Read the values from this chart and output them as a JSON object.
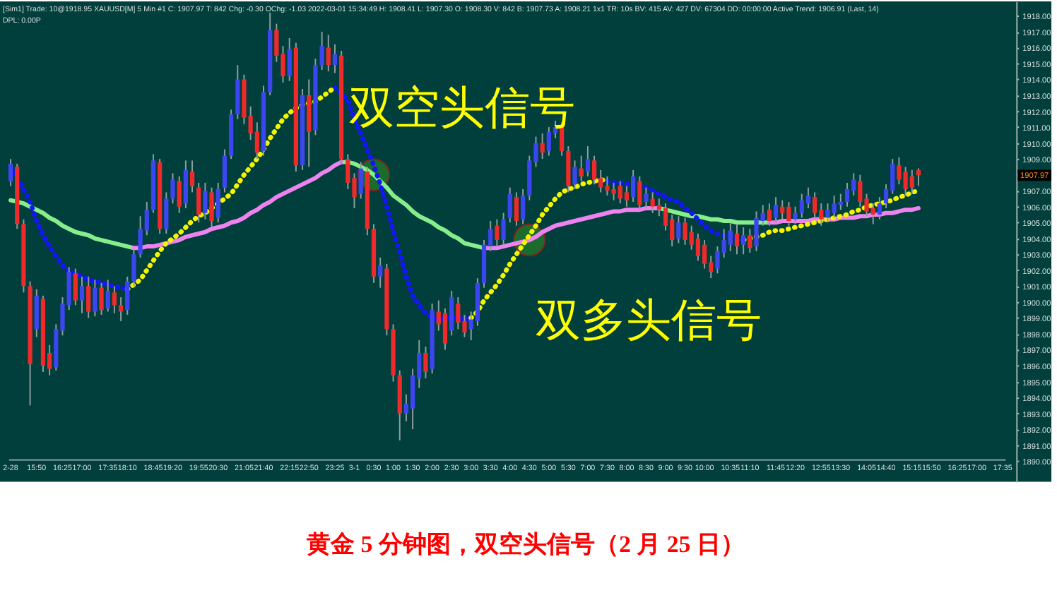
{
  "chart_data": {
    "type": "candlestick",
    "title": "黄金 5 分钟图，双空头信号（2 月 25 日）",
    "subtitle": "[Sim1]  Trade: 10@1918.95  XAUUSD[M]  5 Min  #1  C: 1907.97  T: 842  Chg: -0.30  OChg: -1.03  2022-03-01 15:34:49  H: 1908.41  L: 1907.30  O: 1908.30  V: 842  B: 1907.73  A: 1908.21  1x1  TR: 10s  BV: 415  AV: 427  DV: 67304  DD: 00:00:00  Active Trend: 1906.91  (Last, 14)",
    "categories": [
      "2-28",
      null,
      null,
      null,
      "15:50",
      null,
      null,
      null,
      "16:25",
      null,
      null,
      "17:00",
      null,
      null,
      null,
      "17:35",
      null,
      null,
      "18:10",
      null,
      null,
      null,
      "18:45",
      null,
      null,
      "19:20",
      null,
      null,
      null,
      "19:55",
      null,
      null,
      "20:30",
      null,
      null,
      null,
      "21:05",
      null,
      null,
      "21:40",
      null,
      null,
      null,
      "22:15",
      null,
      null,
      "22:50",
      null,
      null,
      null,
      "23:25",
      null,
      null,
      "3-1",
      null,
      null,
      "0:30",
      null,
      null,
      "1:00",
      null,
      null,
      "1:30",
      null,
      null,
      "2:00",
      null,
      null,
      "2:30",
      null,
      null,
      "3:00",
      null,
      null,
      "3:30",
      null,
      null,
      "4:00",
      null,
      null,
      "4:30",
      null,
      null,
      "5:00",
      null,
      null,
      "5:30",
      null,
      null,
      "7:00",
      null,
      null,
      "7:30",
      null,
      null,
      "8:00",
      null,
      null,
      "8:30",
      null,
      null,
      "9:00",
      null,
      null,
      "9:30",
      null,
      null,
      "10:00",
      null,
      null,
      null,
      "10:35",
      null,
      null,
      "11:10",
      null,
      null,
      null,
      "11:45",
      null,
      null,
      "12:20",
      null,
      null,
      null,
      "12:55",
      null,
      null,
      "13:30",
      null,
      null,
      null,
      "14:05",
      null,
      null,
      "14:40",
      null,
      null,
      null,
      "15:15",
      null,
      null,
      "15:50",
      null,
      null,
      null,
      "16:25",
      null,
      null,
      "17:00",
      null,
      null,
      null,
      "17:35"
    ],
    "ohlc": [
      [
        1907.6,
        1909.0,
        1907.3,
        1908.7
      ],
      [
        1908.5,
        1908.7,
        1904.6,
        1904.9
      ],
      [
        1904.9,
        1905.2,
        1900.6,
        1901.0
      ],
      [
        1901.0,
        1901.3,
        1893.5,
        1896.1
      ],
      [
        1898.3,
        1900.8,
        1897.8,
        1900.4
      ],
      [
        1900.2,
        1900.4,
        1895.6,
        1896.0
      ],
      [
        1896.8,
        1897.3,
        1895.4,
        1895.8
      ],
      [
        1895.9,
        1898.6,
        1895.7,
        1898.3
      ],
      [
        1898.2,
        1900.3,
        1897.9,
        1899.9
      ],
      [
        1899.8,
        1902.2,
        1899.5,
        1901.9
      ],
      [
        1901.8,
        1902.1,
        1899.8,
        1900.1
      ],
      [
        1900.1,
        1901.6,
        1899.3,
        1901.0
      ],
      [
        1901.0,
        1901.6,
        1899.0,
        1899.4
      ],
      [
        1899.4,
        1901.4,
        1899.1,
        1900.9
      ],
      [
        1900.9,
        1901.2,
        1899.2,
        1899.5
      ],
      [
        1899.6,
        1901.4,
        1899.4,
        1900.7
      ],
      [
        1900.6,
        1901.0,
        1899.3,
        1899.8
      ],
      [
        1899.8,
        1900.3,
        1898.8,
        1899.4
      ],
      [
        1899.5,
        1901.6,
        1899.2,
        1901.3
      ],
      [
        1901.3,
        1903.3,
        1901.0,
        1903.0
      ],
      [
        1903.0,
        1905.4,
        1902.8,
        1904.6
      ],
      [
        1904.5,
        1906.3,
        1904.2,
        1905.8
      ],
      [
        1905.8,
        1909.3,
        1905.6,
        1908.9
      ],
      [
        1908.8,
        1909.0,
        1904.3,
        1904.6
      ],
      [
        1904.6,
        1906.9,
        1904.3,
        1906.5
      ],
      [
        1906.5,
        1908.1,
        1906.2,
        1907.7
      ],
      [
        1907.6,
        1907.9,
        1905.6,
        1906.0
      ],
      [
        1906.2,
        1908.9,
        1905.9,
        1908.3
      ],
      [
        1908.2,
        1908.9,
        1906.9,
        1907.3
      ],
      [
        1907.2,
        1907.5,
        1905.0,
        1905.5
      ],
      [
        1905.6,
        1907.5,
        1905.2,
        1907.0
      ],
      [
        1906.9,
        1907.2,
        1904.7,
        1905.1
      ],
      [
        1905.3,
        1907.5,
        1905.0,
        1907.1
      ],
      [
        1907.2,
        1909.6,
        1906.9,
        1909.2
      ],
      [
        1909.2,
        1912.1,
        1909.0,
        1911.8
      ],
      [
        1911.8,
        1914.9,
        1911.5,
        1914.0
      ],
      [
        1914.0,
        1914.3,
        1911.2,
        1911.6
      ],
      [
        1911.7,
        1912.3,
        1910.2,
        1910.6
      ],
      [
        1910.7,
        1911.3,
        1909.0,
        1909.4
      ],
      [
        1909.5,
        1913.6,
        1909.2,
        1913.2
      ],
      [
        1913.2,
        1918.2,
        1913.0,
        1917.1
      ],
      [
        1917.1,
        1917.5,
        1915.1,
        1915.5
      ],
      [
        1915.6,
        1916.1,
        1913.8,
        1914.2
      ],
      [
        1914.2,
        1916.6,
        1913.9,
        1915.9
      ],
      [
        1916.0,
        1916.3,
        1908.2,
        1908.6
      ],
      [
        1908.6,
        1913.4,
        1908.3,
        1913.0
      ],
      [
        1913.0,
        1914.0,
        1908.5,
        1910.7
      ],
      [
        1910.8,
        1915.3,
        1910.5,
        1914.9
      ],
      [
        1914.9,
        1917.0,
        1914.6,
        1916.1
      ],
      [
        1916.0,
        1916.8,
        1914.5,
        1914.9
      ],
      [
        1914.9,
        1916.2,
        1914.4,
        1915.6
      ],
      [
        1915.5,
        1915.8,
        1908.7,
        1909.0
      ],
      [
        1909.0,
        1909.3,
        1907.1,
        1907.5
      ],
      [
        1907.8,
        1908.1,
        1905.9,
        1906.6
      ],
      [
        1906.8,
        1908.8,
        1906.5,
        1908.4
      ],
      [
        1908.2,
        1908.5,
        1904.2,
        1904.6
      ],
      [
        1904.6,
        1904.9,
        1901.2,
        1901.6
      ],
      [
        1901.6,
        1902.8,
        1900.9,
        1902.3
      ],
      [
        1902.1,
        1902.4,
        1897.9,
        1898.3
      ],
      [
        1898.3,
        1898.6,
        1895.0,
        1895.4
      ],
      [
        1895.4,
        1895.7,
        1891.3,
        1893.0
      ],
      [
        1893.0,
        1894.2,
        1892.5,
        1893.6
      ],
      [
        1893.3,
        1895.8,
        1892.0,
        1895.4
      ],
      [
        1895.2,
        1897.6,
        1894.6,
        1896.8
      ],
      [
        1896.8,
        1897.2,
        1895.2,
        1895.6
      ],
      [
        1895.8,
        1899.9,
        1895.5,
        1899.5
      ],
      [
        1899.4,
        1900.1,
        1898.2,
        1898.6
      ],
      [
        1899.3,
        1899.6,
        1897.0,
        1897.4
      ],
      [
        1898.2,
        1900.7,
        1897.9,
        1900.3
      ],
      [
        1899.9,
        1900.3,
        1898.3,
        1898.7
      ],
      [
        1898.8,
        1899.2,
        1897.8,
        1898.1
      ],
      [
        1898.3,
        1899.4,
        1897.6,
        1898.9
      ],
      [
        1898.8,
        1901.5,
        1898.5,
        1901.2
      ],
      [
        1901.2,
        1903.9,
        1900.9,
        1903.6
      ],
      [
        1903.5,
        1905.1,
        1903.2,
        1904.6
      ],
      [
        1904.8,
        1905.2,
        1903.5,
        1903.9
      ],
      [
        1903.9,
        1905.6,
        1903.6,
        1905.2
      ],
      [
        1905.3,
        1907.2,
        1905.0,
        1906.8
      ],
      [
        1906.6,
        1906.9,
        1904.8,
        1905.1
      ],
      [
        1905.2,
        1907.1,
        1904.9,
        1906.7
      ],
      [
        1906.7,
        1909.2,
        1906.4,
        1908.9
      ],
      [
        1908.8,
        1910.4,
        1908.5,
        1910.0
      ],
      [
        1910.0,
        1910.6,
        1909.0,
        1909.4
      ],
      [
        1909.5,
        1911.0,
        1909.2,
        1910.7
      ],
      [
        1910.6,
        1911.4,
        1910.3,
        1911.0
      ],
      [
        1911.0,
        1911.3,
        1909.2,
        1909.5
      ],
      [
        1909.5,
        1909.8,
        1906.9,
        1907.3
      ],
      [
        1907.4,
        1908.9,
        1907.1,
        1908.5
      ],
      [
        1908.4,
        1909.2,
        1907.6,
        1907.9
      ],
      [
        1908.2,
        1909.8,
        1907.9,
        1909.0
      ],
      [
        1908.9,
        1909.2,
        1907.4,
        1907.7
      ],
      [
        1907.8,
        1908.3,
        1906.9,
        1907.2
      ],
      [
        1907.3,
        1907.9,
        1906.7,
        1907.0
      ],
      [
        1907.1,
        1907.5,
        1906.4,
        1906.8
      ],
      [
        1907.3,
        1907.6,
        1906.2,
        1906.5
      ],
      [
        1906.9,
        1907.3,
        1906.0,
        1906.4
      ],
      [
        1906.6,
        1908.3,
        1906.3,
        1907.9
      ],
      [
        1907.6,
        1907.9,
        1905.8,
        1906.1
      ],
      [
        1906.3,
        1907.2,
        1905.9,
        1906.8
      ],
      [
        1906.5,
        1906.9,
        1905.6,
        1906.0
      ],
      [
        1906.1,
        1906.5,
        1905.4,
        1905.8
      ],
      [
        1905.9,
        1906.2,
        1904.5,
        1904.8
      ],
      [
        1905.2,
        1905.5,
        1903.5,
        1903.9
      ],
      [
        1904.0,
        1905.4,
        1903.7,
        1905.0
      ],
      [
        1905.0,
        1905.3,
        1903.6,
        1903.9
      ],
      [
        1904.4,
        1904.8,
        1903.3,
        1903.6
      ],
      [
        1904.0,
        1904.3,
        1902.6,
        1902.9
      ],
      [
        1903.6,
        1903.9,
        1902.1,
        1902.4
      ],
      [
        1902.5,
        1902.9,
        1901.5,
        1901.9
      ],
      [
        1902.1,
        1903.5,
        1901.8,
        1903.2
      ],
      [
        1903.1,
        1904.6,
        1902.8,
        1903.9
      ],
      [
        1903.6,
        1905.0,
        1903.2,
        1904.5
      ],
      [
        1904.3,
        1904.9,
        1903.0,
        1903.5
      ],
      [
        1903.6,
        1904.7,
        1903.0,
        1904.2
      ],
      [
        1904.2,
        1904.6,
        1903.1,
        1903.4
      ],
      [
        1903.5,
        1905.7,
        1903.2,
        1905.3
      ],
      [
        1905.1,
        1906.1,
        1904.8,
        1905.6
      ],
      [
        1905.8,
        1906.2,
        1904.8,
        1905.1
      ],
      [
        1905.3,
        1906.6,
        1905.0,
        1906.1
      ],
      [
        1906.0,
        1906.4,
        1905.2,
        1905.6
      ],
      [
        1906.0,
        1906.3,
        1904.8,
        1905.1
      ],
      [
        1905.2,
        1906.0,
        1904.9,
        1905.6
      ],
      [
        1905.6,
        1906.8,
        1905.3,
        1906.4
      ],
      [
        1906.2,
        1907.2,
        1905.9,
        1906.7
      ],
      [
        1906.6,
        1906.9,
        1905.3,
        1905.6
      ],
      [
        1905.8,
        1906.2,
        1904.8,
        1905.2
      ],
      [
        1905.3,
        1906.2,
        1905.0,
        1905.8
      ],
      [
        1905.6,
        1906.7,
        1905.3,
        1906.2
      ],
      [
        1906.1,
        1906.8,
        1905.8,
        1906.3
      ],
      [
        1906.3,
        1907.5,
        1906.0,
        1907.1
      ],
      [
        1907.0,
        1908.1,
        1906.7,
        1907.7
      ],
      [
        1907.6,
        1908.0,
        1906.0,
        1906.3
      ],
      [
        1906.5,
        1906.8,
        1905.4,
        1905.7
      ],
      [
        1905.9,
        1906.2,
        1904.9,
        1905.5
      ],
      [
        1905.5,
        1906.6,
        1905.2,
        1906.2
      ],
      [
        1906.2,
        1907.4,
        1905.9,
        1907.1
      ],
      [
        1907.0,
        1909.0,
        1906.8,
        1908.7
      ],
      [
        1908.6,
        1909.1,
        1907.4,
        1907.7
      ],
      [
        1908.2,
        1908.5,
        1906.7,
        1907.1
      ],
      [
        1907.9,
        1908.3,
        1906.8,
        1907.2
      ],
      [
        1908.3,
        1908.41,
        1907.3,
        1907.97
      ],
      null,
      null,
      null,
      null,
      null,
      null,
      null,
      null,
      null,
      null,
      null,
      null,
      null
    ],
    "colors": [
      "#3c46f0",
      "#ee2a2a",
      "#ee2a2a",
      "#ee2a2a",
      "#3c46f0",
      "#ee2a2a",
      "#ee2a2a",
      "#3c46f0",
      "#3c46f0",
      "#3c46f0",
      "#ee2a2a",
      "#3c46f0",
      "#ee2a2a",
      "#3c46f0",
      "#ee2a2a",
      "#3c46f0",
      "#ee2a2a",
      "#ee2a2a",
      "#3c46f0",
      "#3c46f0",
      "#3c46f0",
      "#3c46f0",
      "#3c46f0",
      "#ee2a2a",
      "#3c46f0",
      "#3c46f0",
      "#ee2a2a",
      "#3c46f0",
      "#ee2a2a",
      "#ee2a2a",
      "#3c46f0",
      "#ee2a2a",
      "#3c46f0",
      "#3c46f0",
      "#3c46f0",
      "#3c46f0",
      "#ee2a2a",
      "#ee2a2a",
      "#ee2a2a",
      "#3c46f0",
      "#3c46f0",
      "#ee2a2a",
      "#ee2a2a",
      "#3c46f0",
      "#ee2a2a",
      "#3c46f0",
      "#ee2a2a",
      "#3c46f0",
      "#3c46f0",
      "#ee2a2a",
      "#3c46f0",
      "#ee2a2a",
      "#ee2a2a",
      "#ee2a2a",
      "#3c46f0",
      "#ee2a2a",
      "#ee2a2a",
      "#3c46f0",
      "#ee2a2a",
      "#ee2a2a",
      "#ee2a2a",
      "#3c46f0",
      "#3c46f0",
      "#3c46f0",
      "#ee2a2a",
      "#3c46f0",
      "#ee2a2a",
      "#ee2a2a",
      "#3c46f0",
      "#ee2a2a",
      "#ee2a2a",
      "#3c46f0",
      "#3c46f0",
      "#3c46f0",
      "#3c46f0",
      "#ee2a2a",
      "#3c46f0",
      "#3c46f0",
      "#ee2a2a",
      "#3c46f0",
      "#3c46f0",
      "#3c46f0",
      "#ee2a2a",
      "#3c46f0",
      "#3c46f0",
      "#ee2a2a",
      "#ee2a2a",
      "#3c46f0",
      "#ee2a2a",
      "#3c46f0",
      "#ee2a2a",
      "#ee2a2a",
      "#ee2a2a",
      "#ee2a2a",
      "#ee2a2a",
      "#ee2a2a",
      "#3c46f0",
      "#ee2a2a",
      "#3c46f0",
      "#ee2a2a",
      "#ee2a2a",
      "#ee2a2a",
      "#ee2a2a",
      "#3c46f0",
      "#ee2a2a",
      "#ee2a2a",
      "#ee2a2a",
      "#ee2a2a",
      "#ee2a2a",
      "#3c46f0",
      "#3c46f0",
      "#3c46f0",
      "#ee2a2a",
      "#3c46f0",
      "#ee2a2a",
      "#3c46f0",
      "#3c46f0",
      "#ee2a2a",
      "#3c46f0",
      "#ee2a2a",
      "#ee2a2a",
      "#3c46f0",
      "#3c46f0",
      "#3c46f0",
      "#ee2a2a",
      "#ee2a2a",
      "#3c46f0",
      "#3c46f0",
      "#3c46f0",
      "#3c46f0",
      "#3c46f0",
      "#ee2a2a",
      "#ee2a2a",
      "#ee2a2a",
      "#3c46f0",
      "#3c46f0",
      "#3c46f0",
      "#ee2a2a",
      "#ee2a2a",
      "#ee2a2a",
      "#ee2a2a",
      null,
      null,
      null,
      null,
      null,
      null,
      null,
      null,
      null,
      null,
      null,
      null,
      null
    ],
    "series": [
      {
        "type": "line",
        "color": "#86ee8a",
        "values": [
          1906.4,
          1906.3,
          1906.2,
          1906.0,
          1905.8,
          1905.6,
          1905.3,
          1905.1,
          1904.8,
          1904.6,
          1904.4,
          1904.3,
          1904.2,
          1904.0,
          1903.9,
          1903.8,
          1903.7,
          1903.6,
          1903.5,
          1903.4,
          null,
          null,
          null,
          null,
          null,
          null,
          null,
          null,
          null,
          null,
          null,
          null,
          null,
          null,
          null,
          null,
          null,
          null,
          null,
          null,
          null,
          null,
          null,
          null,
          null,
          null,
          null,
          null,
          null,
          null,
          null,
          1908.8,
          1908.8,
          1908.7,
          1908.5,
          1908.3,
          1908.0,
          1907.6,
          1907.2,
          1906.7,
          1906.4,
          1906.1,
          1905.7,
          1905.4,
          1905.2,
          1905.0,
          1904.7,
          1904.5,
          1904.2,
          1904.0,
          1903.7,
          1903.6,
          1903.5,
          1903.4,
          null,
          null,
          null,
          null,
          null,
          null,
          null,
          null,
          null,
          null,
          null,
          null,
          null,
          null,
          null,
          null,
          null,
          null,
          null,
          null,
          null,
          null,
          null,
          null,
          null,
          null,
          1905.9,
          1905.8,
          1905.7,
          1905.6,
          1905.5,
          1905.4,
          1905.4,
          1905.3,
          1905.2,
          1905.2,
          1905.1,
          1905.1,
          1905.0,
          1905.0,
          1905.0,
          1905.0,
          1905.0,
          1905.0,
          null,
          null,
          null,
          null,
          null,
          null,
          null,
          null,
          null,
          null,
          null,
          null,
          null,
          null,
          null,
          null,
          null,
          null,
          null,
          null,
          null,
          null,
          null,
          null,
          null,
          null,
          null,
          null,
          null,
          null,
          null,
          null,
          null,
          null,
          null,
          null
        ]
      },
      {
        "type": "line",
        "color": "#ee82ee",
        "values": [
          null,
          null,
          null,
          null,
          null,
          null,
          null,
          null,
          null,
          null,
          null,
          null,
          null,
          null,
          null,
          null,
          null,
          null,
          null,
          1903.4,
          1903.4,
          1903.5,
          1903.5,
          1903.6,
          1903.7,
          1903.8,
          1903.9,
          1904.1,
          1904.2,
          1904.3,
          1904.4,
          1904.6,
          1904.7,
          1904.8,
          1905.0,
          1905.1,
          1905.3,
          1905.6,
          1905.8,
          1906.1,
          1906.3,
          1906.6,
          1906.8,
          1907.0,
          1907.2,
          1907.4,
          1907.6,
          1907.8,
          1908.1,
          1908.3,
          1908.6,
          1908.8,
          null,
          null,
          null,
          null,
          null,
          null,
          null,
          null,
          null,
          null,
          null,
          null,
          null,
          null,
          null,
          null,
          null,
          null,
          null,
          null,
          null,
          1903.4,
          1903.4,
          1903.4,
          1903.5,
          1903.6,
          1903.7,
          1903.8,
          1903.9,
          1904.1,
          1904.4,
          1904.6,
          1904.8,
          1904.9,
          1905.0,
          1905.1,
          1905.2,
          1905.3,
          1905.4,
          1905.5,
          1905.6,
          1905.7,
          1905.7,
          1905.8,
          1905.8,
          1905.8,
          1905.9,
          1905.9,
          1905.9,
          null,
          null,
          null,
          null,
          null,
          null,
          null,
          null,
          null,
          null,
          null,
          null,
          null,
          null,
          null,
          null,
          1905.0,
          1905.0,
          1905.1,
          1905.1,
          1905.1,
          1905.1,
          1905.1,
          1905.2,
          1905.2,
          1905.2,
          1905.2,
          1905.3,
          1905.3,
          1905.3,
          1905.4,
          1905.4,
          1905.5,
          1905.5,
          1905.6,
          1905.6,
          1905.7,
          1905.8,
          1905.8,
          1905.9,
          null,
          null,
          null,
          null,
          null,
          null,
          null,
          null,
          null,
          null,
          null,
          null,
          null
        ]
      },
      {
        "type": "line",
        "color": "#1414ff",
        "line_style": "dotted",
        "values": [
          1908.5,
          1907.8,
          1907.1,
          1906.3,
          1905.1,
          1904.2,
          1903.5,
          1902.9,
          1902.3,
          1901.9,
          1901.8,
          1901.6,
          1901.4,
          1901.3,
          1901.2,
          1901.1,
          1901.0,
          1900.9,
          1900.8,
          null,
          null,
          null,
          null,
          null,
          null,
          null,
          null,
          null,
          null,
          null,
          null,
          null,
          null,
          null,
          null,
          null,
          null,
          null,
          null,
          null,
          null,
          null,
          null,
          null,
          null,
          null,
          null,
          null,
          null,
          null,
          1913.5,
          1913.1,
          1912.7,
          1911.5,
          1910.6,
          1909.6,
          1908.6,
          1907.4,
          1906.0,
          1904.5,
          1903.1,
          1901.6,
          1900.4,
          1899.8,
          1899.3,
          1899.0,
          1898.9,
          1899.0,
          1899.0,
          1899.0,
          1898.9,
          1899.0,
          null,
          null,
          null,
          null,
          null,
          null,
          null,
          null,
          null,
          null,
          null,
          null,
          null,
          null,
          null,
          null,
          null,
          null,
          null,
          null,
          1907.6,
          1907.5,
          1907.5,
          1907.4,
          1907.4,
          1907.3,
          1907.2,
          1907.0,
          1906.8,
          1906.6,
          1906.4,
          1906.3,
          1905.9,
          1905.6,
          1905.2,
          1904.8,
          1904.5,
          1904.3,
          1904.2,
          1904.0,
          1904.0,
          1903.9,
          null,
          null,
          null,
          null,
          null,
          null,
          null,
          null,
          null,
          null,
          null,
          null,
          null,
          null,
          null,
          null,
          null,
          null,
          null,
          null,
          null,
          null,
          null,
          null,
          null,
          null,
          null,
          null,
          null,
          null,
          null,
          null,
          null,
          null,
          null,
          null,
          null,
          null,
          null,
          null
        ]
      },
      {
        "type": "line",
        "color": "#f5f500",
        "line_style": "dotted",
        "values": [
          null,
          null,
          null,
          null,
          null,
          null,
          null,
          null,
          null,
          null,
          null,
          null,
          null,
          null,
          null,
          null,
          null,
          null,
          1900.8,
          1901.1,
          1901.4,
          1902.0,
          1902.6,
          1903.2,
          1903.7,
          1904.0,
          1904.3,
          1904.7,
          1905.1,
          1905.4,
          1905.6,
          1905.9,
          1906.2,
          1906.5,
          1906.8,
          1907.4,
          1908.0,
          1908.5,
          1909.0,
          1909.6,
          1910.3,
          1910.9,
          1911.5,
          1911.9,
          1912.2,
          1912.4,
          1912.5,
          1912.6,
          1912.9,
          1913.2,
          1913.5,
          null,
          null,
          null,
          null,
          null,
          null,
          null,
          null,
          null,
          null,
          null,
          null,
          null,
          null,
          null,
          null,
          null,
          null,
          null,
          null,
          1899.0,
          1899.4,
          1900.1,
          1900.6,
          1901.1,
          1901.7,
          1902.4,
          1903.0,
          1903.6,
          1904.2,
          1904.8,
          1905.5,
          1906.0,
          1906.5,
          1906.9,
          1907.1,
          1907.2,
          1907.4,
          1907.5,
          1907.6,
          1907.7,
          1907.6,
          null,
          null,
          null,
          null,
          null,
          null,
          null,
          null,
          null,
          null,
          null,
          null,
          null,
          null,
          null,
          null,
          null,
          null,
          null,
          null,
          1903.9,
          1904.0,
          1904.1,
          1904.2,
          1904.4,
          1904.5,
          1904.5,
          1904.6,
          1904.7,
          1904.8,
          1904.9,
          1905.0,
          1905.1,
          1905.2,
          1905.3,
          1905.4,
          1905.5,
          1905.7,
          1905.8,
          1906.0,
          1906.1,
          1906.2,
          1906.3,
          1906.4,
          1906.6,
          1906.7,
          1906.9,
          1907.0,
          null,
          null,
          null,
          null,
          null,
          null,
          null,
          null,
          null,
          null,
          null,
          null,
          null
        ]
      }
    ],
    "ylim": [
      1888.7,
      1918.9
    ],
    "yticks": [
      {
        "value": 1890,
        "label": "1890.00"
      },
      {
        "value": 1891,
        "label": "1891.00"
      },
      {
        "value": 1892,
        "label": "1892.00"
      },
      {
        "value": 1893,
        "label": "1893.00"
      },
      {
        "value": 1894,
        "label": "1894.00"
      },
      {
        "value": 1895,
        "label": "1895.00"
      },
      {
        "value": 1896,
        "label": "1896.00"
      },
      {
        "value": 1897,
        "label": "1897.00"
      },
      {
        "value": 1898,
        "label": "1898.00"
      },
      {
        "value": 1899,
        "label": "1899.00"
      },
      {
        "value": 1900,
        "label": "1900.00"
      },
      {
        "value": 1901,
        "label": "1901.00"
      },
      {
        "value": 1902,
        "label": "1902.00"
      },
      {
        "value": 1903,
        "label": "1903.00"
      },
      {
        "value": 1904,
        "label": "1904.00"
      },
      {
        "value": 1905,
        "label": "1905.00"
      },
      {
        "value": 1906,
        "label": "1906.00"
      },
      {
        "value": 1907,
        "label": "1907.00"
      },
      {
        "value": 1908,
        "label": null
      },
      {
        "value": 1909,
        "label": "1909.00"
      },
      {
        "value": 1910,
        "label": "1910.00"
      },
      {
        "value": 1911,
        "label": "1911.00"
      },
      {
        "value": 1912,
        "label": "1912.00"
      },
      {
        "value": 1913,
        "label": "1913.00"
      },
      {
        "value": 1914,
        "label": "1914.00"
      },
      {
        "value": 1915,
        "label": "1915.00"
      },
      {
        "value": 1916,
        "label": "1916.00"
      },
      {
        "value": 1917,
        "label": "1917.00"
      },
      {
        "value": 1918,
        "label": "1918.00"
      }
    ],
    "annotations": [
      {
        "text": "双空头信号",
        "x": "0:30",
        "y": 1908.0
      },
      {
        "text": "双多头信号",
        "x": "4:30",
        "y": 1903.9
      },
      "1907.97",
      "DPL: 0.00P"
    ]
  }
}
